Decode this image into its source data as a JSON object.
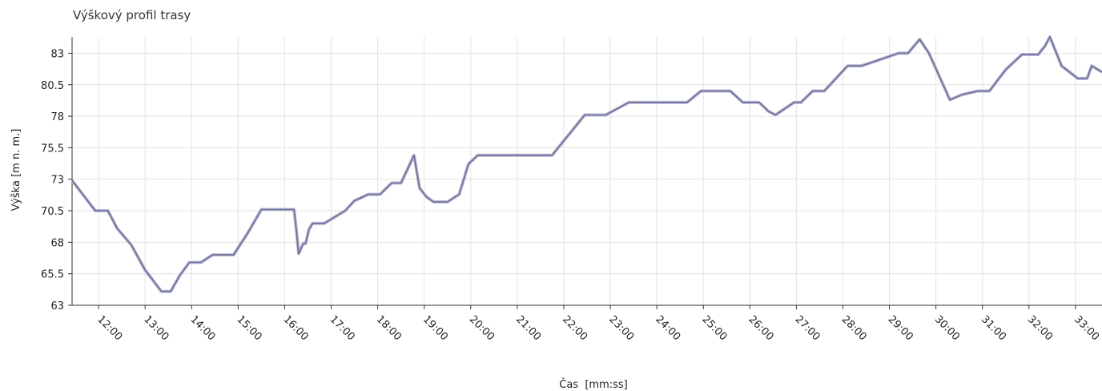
{
  "chart_data": {
    "type": "line",
    "title": "Výškový profil trasy",
    "xlabel": "Čas  [mm:ss]",
    "ylabel": "Výška [m n. m.]",
    "ylim": [
      63,
      84.3
    ],
    "y_ticks": [
      "63",
      "65.5",
      "68",
      "70.5",
      "73",
      "75.5",
      "78",
      "80.5",
      "83"
    ],
    "x_ticks": [
      "12:00",
      "13:00",
      "14:00",
      "15:00",
      "16:00",
      "17:00",
      "18:00",
      "19:00",
      "20:00",
      "21:00",
      "22:00",
      "23:00",
      "24:00",
      "25:00",
      "26:00",
      "27:00",
      "28:00",
      "29:00",
      "30:00",
      "31:00",
      "32:00",
      "33:00"
    ],
    "x_unit": "minutes",
    "xlim": [
      11.43,
      33.57
    ],
    "grid": true,
    "line_color": "#6e6e96",
    "series": [
      {
        "x": [
          11.43,
          11.93,
          12.2,
          12.4,
          12.7,
          13.0,
          13.35,
          13.55,
          13.75,
          13.95,
          14.2,
          14.45,
          14.9,
          15.2,
          15.5,
          16.2,
          16.25,
          16.3,
          16.4,
          16.45,
          16.52,
          16.6,
          16.85,
          17.3,
          17.5,
          17.8,
          18.05,
          18.3,
          18.5,
          18.68,
          18.78,
          18.9,
          19.05,
          19.2,
          19.5,
          19.75,
          19.95,
          20.15,
          20.25,
          21.75,
          22.45,
          22.9,
          23.4,
          23.68,
          24.35,
          24.65,
          24.95,
          25.58,
          25.85,
          26.2,
          26.4,
          26.55,
          26.95,
          27.1,
          27.35,
          27.6,
          28.1,
          28.4,
          29.2,
          29.4,
          29.65,
          29.85,
          30.3,
          30.55,
          30.9,
          31.15,
          31.5,
          31.85,
          32.2,
          32.35,
          32.45,
          32.7,
          33.05,
          33.25,
          33.35,
          33.57
        ],
        "y": [
          72.9,
          70.5,
          70.5,
          69.1,
          67.8,
          65.8,
          64.1,
          64.1,
          65.4,
          66.4,
          66.4,
          67.0,
          67.0,
          68.7,
          70.6,
          70.6,
          69.0,
          67.1,
          67.9,
          67.9,
          69.0,
          69.5,
          69.5,
          70.5,
          71.3,
          71.8,
          71.8,
          72.7,
          72.7,
          74.1,
          74.9,
          72.3,
          71.6,
          71.2,
          71.2,
          71.8,
          74.2,
          74.9,
          74.9,
          74.9,
          78.1,
          78.1,
          79.1,
          79.1,
          79.1,
          79.1,
          80.0,
          80.0,
          79.1,
          79.1,
          78.4,
          78.1,
          79.1,
          79.1,
          80.0,
          80.0,
          82.0,
          82.0,
          83.0,
          83.0,
          84.1,
          83.0,
          79.3,
          79.7,
          80.0,
          80.0,
          81.7,
          82.9,
          82.9,
          83.6,
          84.3,
          82.0,
          81.0,
          81.0,
          82.0,
          81.5
        ]
      }
    ]
  }
}
